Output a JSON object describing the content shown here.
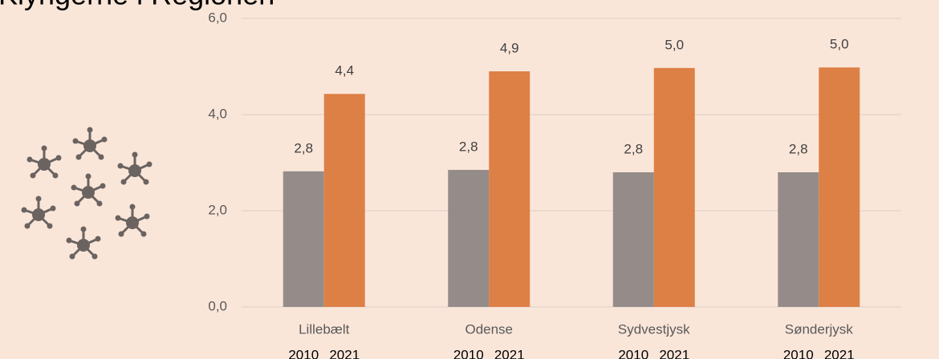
{
  "chart_data": {
    "type": "bar",
    "title": "Klyngerne i Regionen",
    "categories": [
      "Lillebælt",
      "Odense",
      "Sydvestjysk",
      "Sønderjysk"
    ],
    "series": [
      {
        "name": "2010",
        "color": "#958c8a",
        "values": [
          2.82,
          2.85,
          2.8,
          2.8
        ],
        "value_labels": [
          "2,8",
          "2,8",
          "2,8",
          "2,8"
        ]
      },
      {
        "name": "2021",
        "color": "#dd8046",
        "values": [
          4.43,
          4.9,
          4.97,
          4.98
        ],
        "value_labels": [
          "4,4",
          "4,9",
          "5,0",
          "5,0"
        ]
      }
    ],
    "ylim": [
      0,
      6
    ],
    "yticks": [
      {
        "value": 0,
        "label": "0,0"
      },
      {
        "value": 2,
        "label": "2,0"
      },
      {
        "value": 4,
        "label": "4,0"
      },
      {
        "value": 6,
        "label": "6,0"
      }
    ],
    "grid": true
  }
}
